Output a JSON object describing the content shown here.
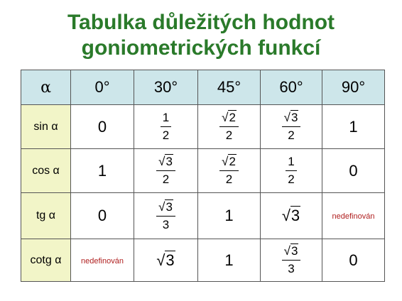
{
  "title_line1": "Tabulka důležitých hodnot",
  "title_line2": "goniometrických funkcí",
  "table": {
    "corner": "α",
    "angles": [
      "0°",
      "30°",
      "45°",
      "60°",
      "90°"
    ],
    "rows": [
      {
        "label": "sin α",
        "cells": [
          {
            "type": "text",
            "value": "0"
          },
          {
            "type": "frac",
            "num": "1",
            "den": "2"
          },
          {
            "type": "frac",
            "num_sqrt": "2",
            "den": "2"
          },
          {
            "type": "frac",
            "num_sqrt": "3",
            "den": "2"
          },
          {
            "type": "text",
            "value": "1"
          }
        ]
      },
      {
        "label": "cos α",
        "cells": [
          {
            "type": "text",
            "value": "1"
          },
          {
            "type": "frac",
            "num_sqrt": "3",
            "den": "2"
          },
          {
            "type": "frac",
            "num_sqrt": "2",
            "den": "2"
          },
          {
            "type": "frac",
            "num": "1",
            "den": "2"
          },
          {
            "type": "text",
            "value": "0"
          }
        ]
      },
      {
        "label": "tg α",
        "cells": [
          {
            "type": "text",
            "value": "0"
          },
          {
            "type": "frac",
            "num_sqrt": "3",
            "den": "3"
          },
          {
            "type": "text",
            "value": "1"
          },
          {
            "type": "sqrt",
            "value": "3"
          },
          {
            "type": "nd",
            "value": "nedefinován"
          }
        ]
      },
      {
        "label": "cotg α",
        "cells": [
          {
            "type": "nd",
            "value": "nedefinován"
          },
          {
            "type": "sqrt",
            "value": "3"
          },
          {
            "type": "text",
            "value": "1"
          },
          {
            "type": "frac",
            "num_sqrt": "3",
            "den": "3"
          },
          {
            "type": "text",
            "value": "0"
          }
        ]
      }
    ]
  },
  "colors": {
    "title": "#2a7a2a",
    "header_bg": "#cde6ea",
    "label_bg": "#f2f5c8",
    "undefined_text": "#b02020"
  }
}
